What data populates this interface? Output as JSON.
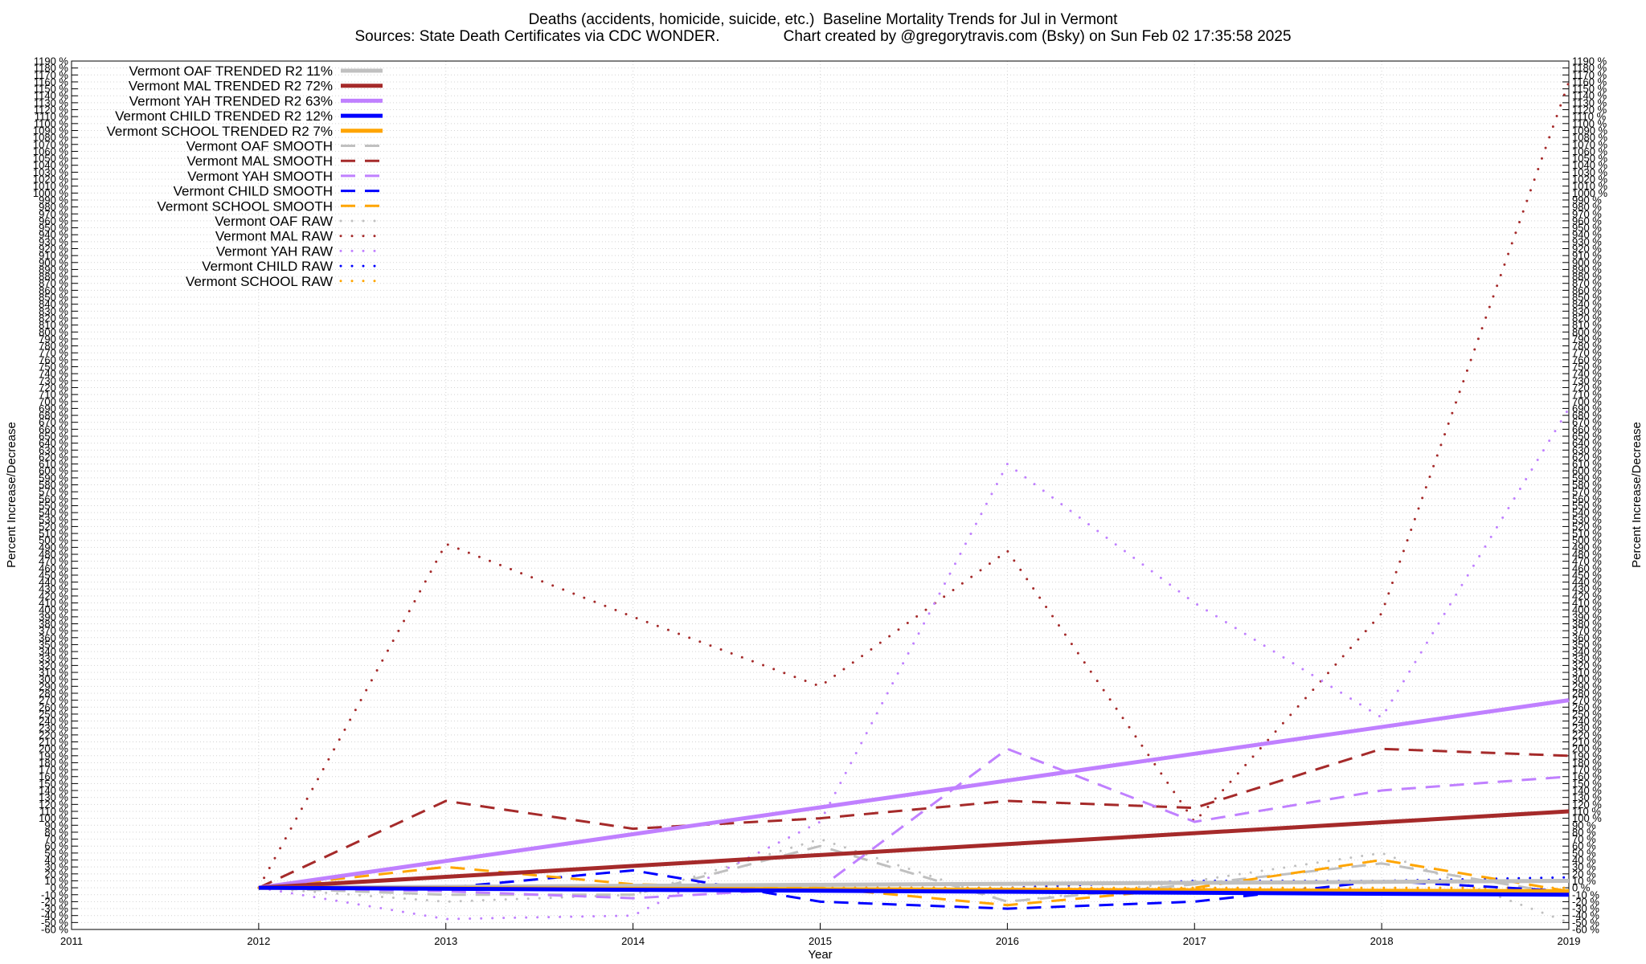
{
  "header": {
    "title_line_1": "Deaths (accidents, homicide, suicide, etc.)  Baseline Mortality Trends for Jul in Vermont",
    "title_line_2": "Sources: State Death Certificates via CDC WONDER.               Chart created by @gregorytravis.com (Bsky) on Sun Feb 02 17:35:58 2025"
  },
  "chart_data": {
    "type": "line",
    "title": "Deaths (accidents, homicide, suicide, etc.)  Baseline Mortality Trends for Jul in Vermont",
    "subtitle": "Sources: State Death Certificates via CDC WONDER.               Chart created by @gregorytravis.com (Bsky) on Sun Feb 02 17:35:58 2025",
    "xlabel": "Year",
    "ylabel": "Percent Increase/Decrease",
    "ylabel_right": "Percent Increase/Decrease",
    "xlim": [
      2011,
      2019
    ],
    "ylim": [
      -60,
      1190
    ],
    "ytick_step": 10,
    "ytick_suffix": " %",
    "xticks": [
      2011,
      2012,
      2013,
      2014,
      2015,
      2016,
      2017,
      2018,
      2019
    ],
    "grid": true,
    "legend_position": "top-left",
    "series": [
      {
        "name": "Vermont OAF TRENDED R2  11%",
        "style": "solid",
        "color": "#c0c0c0",
        "x": [
          2012,
          2019
        ],
        "y": [
          0,
          10
        ]
      },
      {
        "name": "Vermont MAL TRENDED R2  72%",
        "style": "solid",
        "color": "#a52a2a",
        "x": [
          2012,
          2019
        ],
        "y": [
          0,
          110
        ]
      },
      {
        "name": "Vermont YAH TRENDED R2  63%",
        "style": "solid",
        "color": "#c080ff",
        "x": [
          2012,
          2019
        ],
        "y": [
          0,
          270
        ]
      },
      {
        "name": "Vermont CHILD TRENDED R2  12%",
        "style": "solid",
        "color": "#0000ff",
        "x": [
          2012,
          2019
        ],
        "y": [
          0,
          -10
        ]
      },
      {
        "name": "Vermont SCHOOL TRENDED R2   7%",
        "style": "solid",
        "color": "#ffa500",
        "x": [
          2012,
          2019
        ],
        "y": [
          0,
          -5
        ]
      },
      {
        "name": "Vermont OAF SMOOTH",
        "style": "dashed",
        "color": "#c0c0c0",
        "x": [
          2012,
          2013,
          2014,
          2015,
          2016,
          2017,
          2018,
          2019
        ],
        "y": [
          0,
          -10,
          -10,
          60,
          -20,
          5,
          35,
          -10
        ]
      },
      {
        "name": "Vermont MAL SMOOTH",
        "style": "dashed",
        "color": "#a52a2a",
        "x": [
          2012,
          2013,
          2014,
          2015,
          2016,
          2017,
          2018,
          2019
        ],
        "y": [
          0,
          125,
          85,
          100,
          125,
          115,
          200,
          190
        ]
      },
      {
        "name": "Vermont YAH SMOOTH",
        "style": "dashed",
        "color": "#c080ff",
        "x": [
          2012,
          2013,
          2014,
          2015,
          2016,
          2017,
          2018,
          2019
        ],
        "y": [
          0,
          -5,
          -15,
          0,
          200,
          95,
          140,
          160
        ]
      },
      {
        "name": "Vermont CHILD SMOOTH",
        "style": "dashed",
        "color": "#0000ff",
        "x": [
          2012,
          2013,
          2014,
          2015,
          2016,
          2017,
          2018,
          2019
        ],
        "y": [
          0,
          0,
          25,
          -20,
          -30,
          -20,
          10,
          -5
        ]
      },
      {
        "name": "Vermont SCHOOL SMOOTH",
        "style": "dashed",
        "color": "#ffa500",
        "x": [
          2012,
          2013,
          2014,
          2015,
          2016,
          2017,
          2018,
          2019
        ],
        "y": [
          0,
          30,
          5,
          0,
          -25,
          0,
          40,
          -5
        ]
      },
      {
        "name": "Vermont OAF RAW",
        "style": "dotted",
        "color": "#c0c0c0",
        "x": [
          2012,
          2013,
          2014,
          2015,
          2016,
          2017,
          2018,
          2019
        ],
        "y": [
          0,
          -20,
          -10,
          70,
          -20,
          10,
          50,
          -50
        ]
      },
      {
        "name": "Vermont MAL RAW",
        "style": "dotted",
        "color": "#a52a2a",
        "x": [
          2012,
          2013,
          2014,
          2015,
          2016,
          2017,
          2018,
          2019
        ],
        "y": [
          0,
          495,
          390,
          290,
          485,
          95,
          395,
          1160
        ]
      },
      {
        "name": "Vermont YAH RAW",
        "style": "dotted",
        "color": "#c080ff",
        "x": [
          2012,
          2013,
          2014,
          2015,
          2016,
          2017,
          2018,
          2019
        ],
        "y": [
          0,
          -45,
          -40,
          95,
          610,
          410,
          245,
          690
        ]
      },
      {
        "name": "Vermont CHILD RAW",
        "style": "dotted",
        "color": "#0000ff",
        "x": [
          2012,
          2013,
          2014,
          2015,
          2016,
          2017,
          2018,
          2019
        ],
        "y": [
          0,
          0,
          0,
          0,
          0,
          10,
          10,
          15
        ]
      },
      {
        "name": "Vermont SCHOOL RAW",
        "style": "dotted",
        "color": "#ffa500",
        "x": [
          2012,
          2013,
          2014,
          2015,
          2016,
          2017,
          2018,
          2019
        ],
        "y": [
          0,
          0,
          0,
          0,
          0,
          0,
          0,
          0
        ]
      }
    ]
  }
}
